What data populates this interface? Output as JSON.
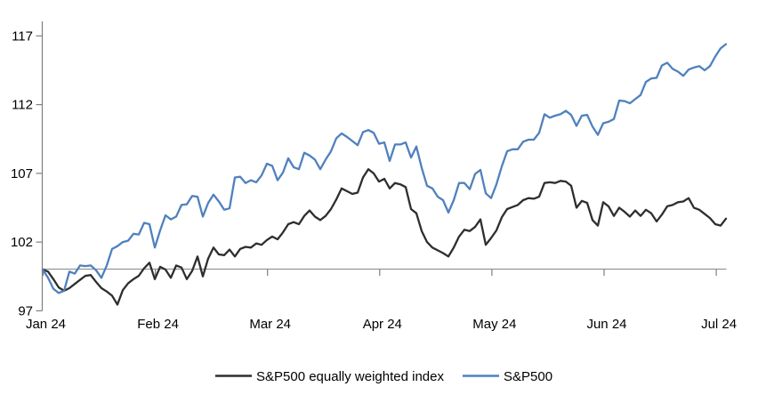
{
  "figure": {
    "background": "#ffffff",
    "title": ""
  },
  "colors": {
    "axis": "#7f7f7f",
    "baseline": "#969696",
    "text": "#000000",
    "series_equal_weight": "#2e2e2e",
    "series_sp500": "#4f81bd"
  },
  "chart_data": {
    "type": "line",
    "title": "",
    "xlabel": "",
    "ylabel": "",
    "grid": false,
    "x_axis": {
      "tick_labels": [
        "Jan 24",
        "Feb 24",
        "Mar 24",
        "Apr 24",
        "May 24",
        "Jun 24",
        "Jul 24"
      ],
      "baseline_value": 100,
      "note": "horizontal axis line drawn at indexed value 100"
    },
    "y_axis": {
      "tick_labels": [
        97,
        102,
        107,
        112,
        117
      ],
      "min": 97,
      "max": 117
    },
    "legend": {
      "position": "bottom",
      "entries": [
        "S&P500 equally weighted index",
        "S&P500"
      ]
    },
    "series": [
      {
        "name": "S&P500 equally weighted index",
        "color": "#2e2e2e",
        "start_value": 100,
        "end_value": 103.7,
        "values": [
          100.0,
          99.85,
          99.3,
          98.7,
          98.45,
          98.65,
          98.95,
          99.25,
          99.55,
          99.6,
          99.1,
          98.65,
          98.4,
          98.1,
          97.45,
          98.5,
          99.0,
          99.3,
          99.55,
          100.1,
          100.5,
          99.3,
          100.2,
          100.0,
          99.4,
          100.3,
          100.15,
          99.3,
          99.9,
          100.95,
          99.5,
          100.8,
          101.6,
          101.1,
          101.05,
          101.45,
          100.95,
          101.5,
          101.65,
          101.6,
          101.9,
          101.8,
          102.15,
          102.4,
          102.2,
          102.7,
          103.3,
          103.45,
          103.3,
          103.9,
          104.3,
          103.85,
          103.6,
          103.9,
          104.4,
          105.1,
          105.9,
          105.7,
          105.5,
          105.6,
          106.7,
          107.3,
          107.0,
          106.4,
          106.6,
          105.9,
          106.3,
          106.2,
          106.0,
          104.4,
          104.1,
          102.8,
          102.0,
          101.6,
          101.4,
          101.2,
          100.95,
          101.6,
          102.4,
          102.9,
          102.8,
          103.1,
          103.65,
          101.8,
          102.3,
          102.85,
          103.8,
          104.4,
          104.55,
          104.7,
          105.05,
          105.2,
          105.15,
          105.3,
          106.3,
          106.35,
          106.3,
          106.45,
          106.4,
          106.1,
          104.5,
          105.0,
          104.85,
          103.6,
          103.2,
          104.9,
          104.6,
          103.9,
          104.5,
          104.2,
          103.85,
          104.3,
          103.9,
          104.35,
          104.1,
          103.5,
          104.0,
          104.6,
          104.7,
          104.9,
          104.95,
          105.2,
          104.5,
          104.35,
          104.05,
          103.75,
          103.3,
          103.2,
          103.7
        ]
      },
      {
        "name": "S&P500",
        "color": "#4f81bd",
        "start_value": 100,
        "end_value": 116.4,
        "values": [
          100.0,
          99.4,
          98.6,
          98.3,
          98.45,
          99.85,
          99.7,
          100.3,
          100.25,
          100.3,
          99.95,
          99.4,
          100.3,
          101.5,
          101.7,
          102.0,
          102.1,
          102.6,
          102.55,
          103.4,
          103.3,
          101.6,
          102.85,
          103.95,
          103.65,
          103.85,
          104.7,
          104.75,
          105.35,
          105.3,
          103.85,
          104.85,
          105.45,
          104.95,
          104.35,
          104.45,
          106.7,
          106.75,
          106.3,
          106.5,
          106.35,
          106.85,
          107.7,
          107.55,
          106.5,
          107.05,
          108.1,
          107.45,
          107.3,
          108.5,
          108.3,
          108.0,
          107.3,
          108.0,
          108.6,
          109.55,
          109.9,
          109.65,
          109.35,
          109.05,
          110.0,
          110.15,
          109.95,
          109.15,
          109.25,
          107.9,
          109.1,
          109.1,
          109.25,
          108.15,
          108.95,
          107.4,
          106.1,
          105.9,
          105.3,
          105.05,
          104.15,
          105.05,
          106.3,
          106.3,
          105.85,
          106.95,
          107.25,
          105.55,
          105.2,
          106.2,
          107.5,
          108.6,
          108.75,
          108.75,
          109.3,
          109.45,
          109.45,
          109.95,
          111.3,
          111.05,
          111.2,
          111.3,
          111.55,
          111.25,
          110.45,
          111.2,
          111.25,
          110.4,
          109.8,
          110.65,
          110.75,
          110.95,
          112.3,
          112.25,
          112.1,
          112.4,
          112.7,
          113.65,
          113.9,
          113.95,
          114.85,
          115.05,
          114.6,
          114.4,
          114.1,
          114.55,
          114.7,
          114.8,
          114.5,
          114.8,
          115.5,
          116.1,
          116.4
        ]
      }
    ]
  }
}
